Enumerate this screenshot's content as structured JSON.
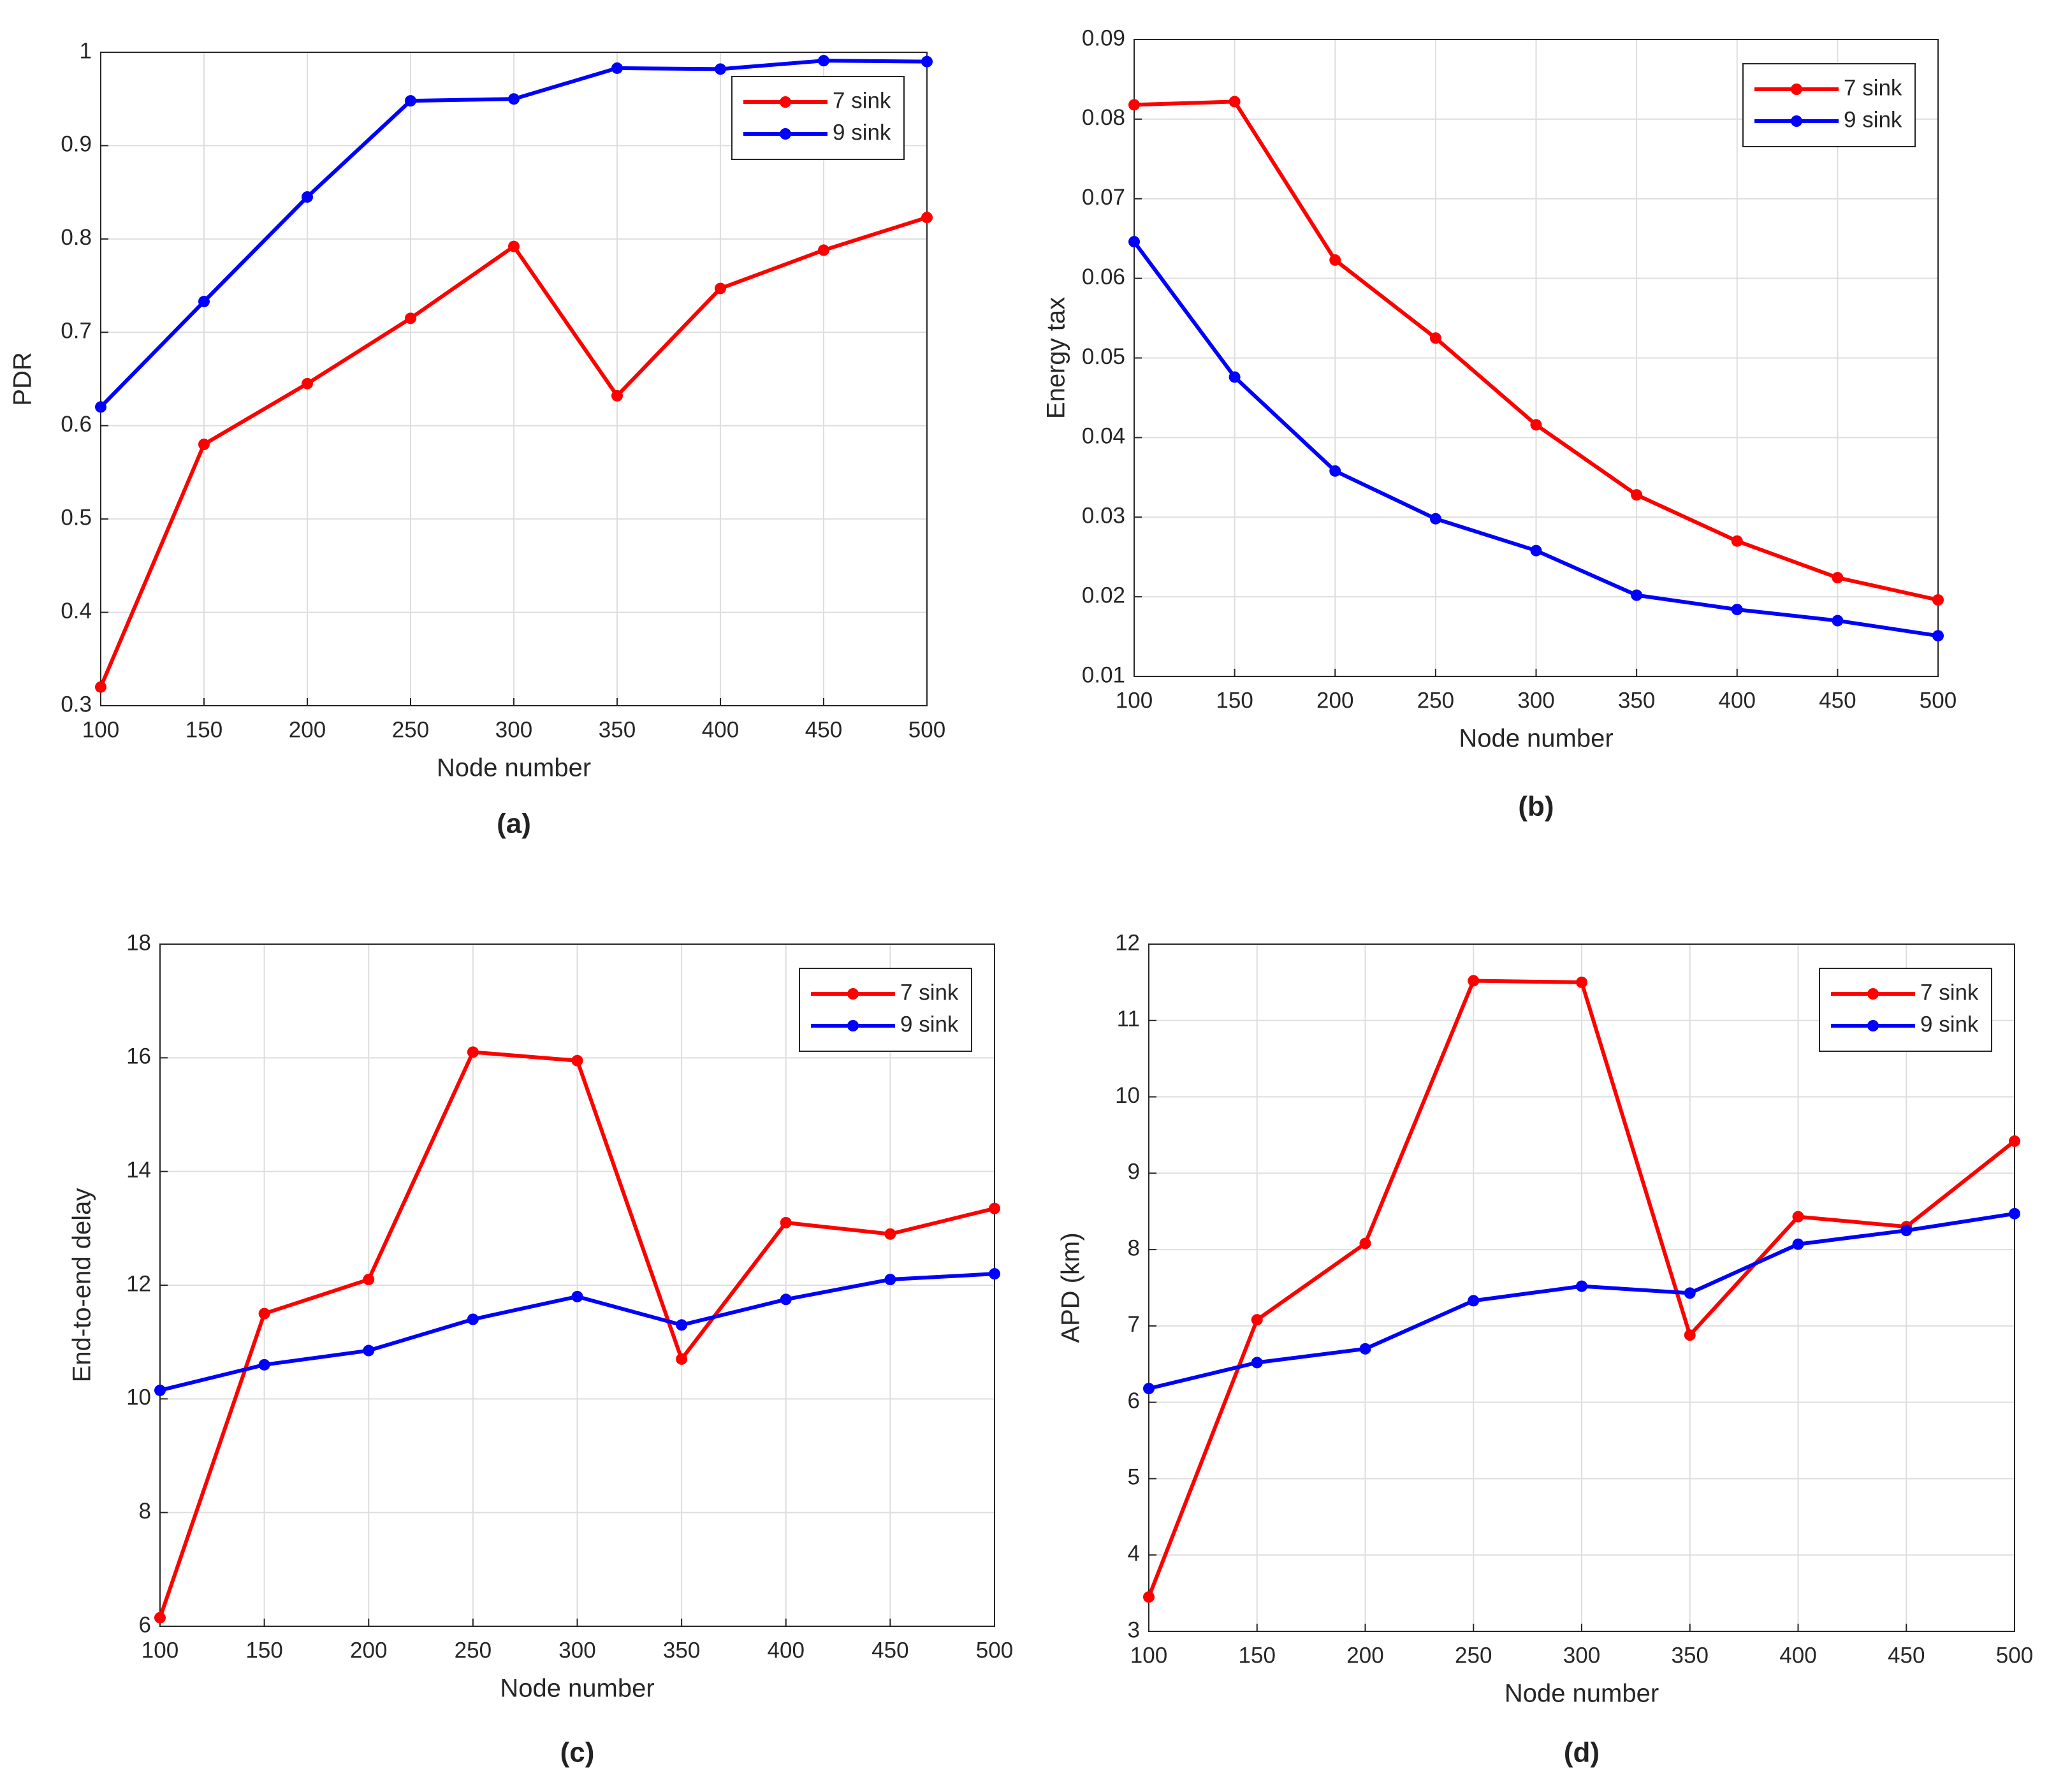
{
  "chart_data": [
    {
      "type": "line",
      "caption": "(a)",
      "xlabel": "Node number",
      "ylabel": "PDR",
      "x": [
        100,
        150,
        200,
        250,
        300,
        350,
        400,
        450,
        500
      ],
      "xlim": [
        100,
        500
      ],
      "xticks": [
        100,
        150,
        200,
        250,
        300,
        350,
        400,
        450,
        500
      ],
      "ylim": [
        0.3,
        1
      ],
      "yticks": [
        0.3,
        0.4,
        0.5,
        0.6,
        0.7,
        0.8,
        0.9,
        1
      ],
      "grid": true,
      "legend": "upper right",
      "series": [
        {
          "name": "7 sink",
          "color": "#ff0000",
          "values": [
            0.32,
            0.58,
            0.645,
            0.715,
            0.792,
            0.632,
            0.747,
            0.788,
            0.823
          ]
        },
        {
          "name": "9 sink",
          "color": "#0000ff",
          "values": [
            0.62,
            0.733,
            0.845,
            0.948,
            0.95,
            0.983,
            0.982,
            0.991,
            0.99
          ]
        }
      ]
    },
    {
      "type": "line",
      "caption": "(b)",
      "xlabel": "Node number",
      "ylabel": "Energy tax",
      "x": [
        100,
        150,
        200,
        250,
        300,
        350,
        400,
        450,
        500
      ],
      "xlim": [
        100,
        500
      ],
      "xticks": [
        100,
        150,
        200,
        250,
        300,
        350,
        400,
        450,
        500
      ],
      "ylim": [
        0.01,
        0.09
      ],
      "yticks": [
        0.01,
        0.02,
        0.03,
        0.04,
        0.05,
        0.06,
        0.07,
        0.08,
        0.09
      ],
      "grid": true,
      "legend": "upper right",
      "series": [
        {
          "name": "7 sink",
          "color": "#ff0000",
          "values": [
            0.0818,
            0.0822,
            0.0623,
            0.0525,
            0.0416,
            0.0328,
            0.027,
            0.0224,
            0.0196
          ]
        },
        {
          "name": "9 sink",
          "color": "#0000ff",
          "values": [
            0.0646,
            0.0476,
            0.0358,
            0.0298,
            0.0258,
            0.0202,
            0.0184,
            0.017,
            0.0151
          ]
        }
      ]
    },
    {
      "type": "line",
      "caption": "(c)",
      "xlabel": "Node number",
      "ylabel": "End-to-end delay",
      "x": [
        100,
        150,
        200,
        250,
        300,
        350,
        400,
        450,
        500
      ],
      "xlim": [
        100,
        500
      ],
      "xticks": [
        100,
        150,
        200,
        250,
        300,
        350,
        400,
        450,
        500
      ],
      "ylim": [
        6,
        18
      ],
      "yticks": [
        6,
        8,
        10,
        12,
        14,
        16,
        18
      ],
      "grid": true,
      "legend": "upper right",
      "series": [
        {
          "name": "7 sink",
          "color": "#ff0000",
          "values": [
            6.15,
            11.5,
            12.1,
            16.1,
            15.95,
            10.7,
            13.1,
            12.9,
            13.35
          ]
        },
        {
          "name": "9 sink",
          "color": "#0000ff",
          "values": [
            10.15,
            10.6,
            10.85,
            11.4,
            11.8,
            11.3,
            11.75,
            12.1,
            12.2
          ]
        }
      ]
    },
    {
      "type": "line",
      "caption": "(d)",
      "xlabel": "Node number",
      "ylabel": "APD (km)",
      "x": [
        100,
        150,
        200,
        250,
        300,
        350,
        400,
        450,
        500
      ],
      "xlim": [
        100,
        500
      ],
      "xticks": [
        100,
        150,
        200,
        250,
        300,
        350,
        400,
        450,
        500
      ],
      "ylim": [
        3,
        12
      ],
      "yticks": [
        3,
        4,
        5,
        6,
        7,
        8,
        9,
        10,
        11,
        12
      ],
      "grid": true,
      "legend": "upper right",
      "series": [
        {
          "name": "7 sink",
          "color": "#ff0000",
          "values": [
            3.45,
            7.08,
            8.08,
            11.52,
            11.5,
            6.88,
            8.43,
            8.3,
            9.42
          ]
        },
        {
          "name": "9 sink",
          "color": "#0000ff",
          "values": [
            6.18,
            6.52,
            6.7,
            7.33,
            7.52,
            7.43,
            8.07,
            8.25,
            8.47
          ]
        }
      ]
    }
  ]
}
